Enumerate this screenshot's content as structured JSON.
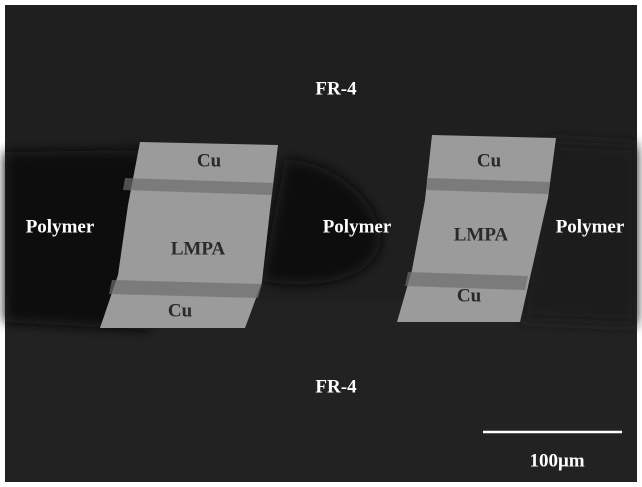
{
  "labels": {
    "top": "FR-4",
    "bottom": "FR-4",
    "polymer_left": "Polymer",
    "polymer_middle": "Polymer",
    "polymer_right": "Polymer",
    "left_joint": {
      "cu_top": "Cu",
      "lmpa": "LMPA",
      "cu_bottom": "Cu"
    },
    "right_joint": {
      "cu_top": "Cu",
      "lmpa": "LMPA",
      "cu_bottom": "Cu"
    }
  },
  "scale_bar": {
    "label": "100μm"
  }
}
